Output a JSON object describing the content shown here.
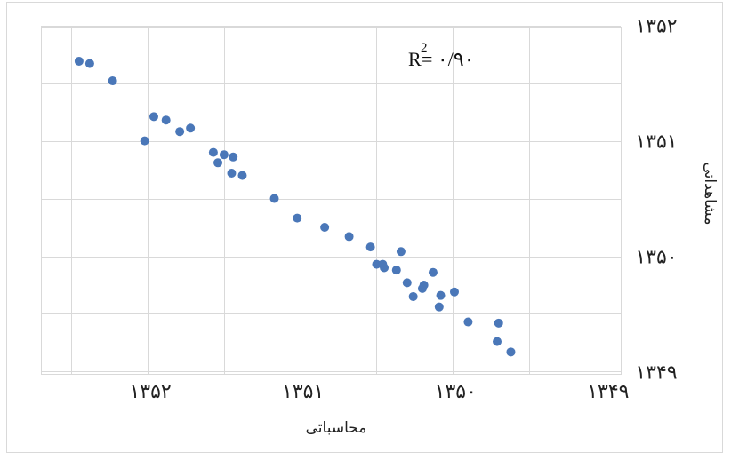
{
  "chart_data": {
    "type": "scatter",
    "title": "",
    "xlabel": "محاسباتی",
    "ylabel": "مشاهداتی",
    "xlim": [
      1352.7,
      1348.9
    ],
    "ylim": [
      1348.98,
      1351.99
    ],
    "x_ticks": [
      1352,
      1351,
      1350,
      1349
    ],
    "x_tick_labels": [
      "۱۳۵۲",
      "۱۳۵۱",
      "۱۳۵۰",
      "۱۳۴۹"
    ],
    "y_ticks": [
      1349,
      1350,
      1351,
      1352
    ],
    "y_tick_labels": [
      "۱۳۴۹",
      "۱۳۵۰",
      "۱۳۵۱",
      "۱۳۵۲"
    ],
    "x_reversed": true,
    "grid": true,
    "annotation": {
      "base": "R",
      "superscript": "2",
      "value": "= ۰/۹۰"
    },
    "color": "#4a77b8",
    "series": [
      {
        "points": [
          [
            1352.45,
            1351.69
          ],
          [
            1352.38,
            1351.67
          ],
          [
            1352.23,
            1351.52
          ],
          [
            1352.02,
            1351.0
          ],
          [
            1351.96,
            1351.21
          ],
          [
            1351.88,
            1351.18
          ],
          [
            1351.79,
            1351.08
          ],
          [
            1351.72,
            1351.11
          ],
          [
            1351.57,
            1350.9
          ],
          [
            1351.54,
            1350.81
          ],
          [
            1351.5,
            1350.88
          ],
          [
            1351.45,
            1350.72
          ],
          [
            1351.44,
            1350.86
          ],
          [
            1351.38,
            1350.7
          ],
          [
            1351.17,
            1350.5
          ],
          [
            1351.02,
            1350.33
          ],
          [
            1350.84,
            1350.25
          ],
          [
            1350.68,
            1350.17
          ],
          [
            1350.54,
            1350.08
          ],
          [
            1350.5,
            1349.93
          ],
          [
            1350.46,
            1349.93
          ],
          [
            1350.45,
            1349.9
          ],
          [
            1350.37,
            1349.88
          ],
          [
            1350.34,
            1350.04
          ],
          [
            1350.3,
            1349.77
          ],
          [
            1350.26,
            1349.65
          ],
          [
            1350.2,
            1349.72
          ],
          [
            1350.19,
            1349.75
          ],
          [
            1350.13,
            1349.86
          ],
          [
            1350.09,
            1349.56
          ],
          [
            1350.08,
            1349.66
          ],
          [
            1349.99,
            1349.69
          ],
          [
            1349.9,
            1349.43
          ],
          [
            1349.7,
            1349.42
          ],
          [
            1349.71,
            1349.26
          ],
          [
            1349.62,
            1349.17
          ]
        ]
      }
    ]
  }
}
